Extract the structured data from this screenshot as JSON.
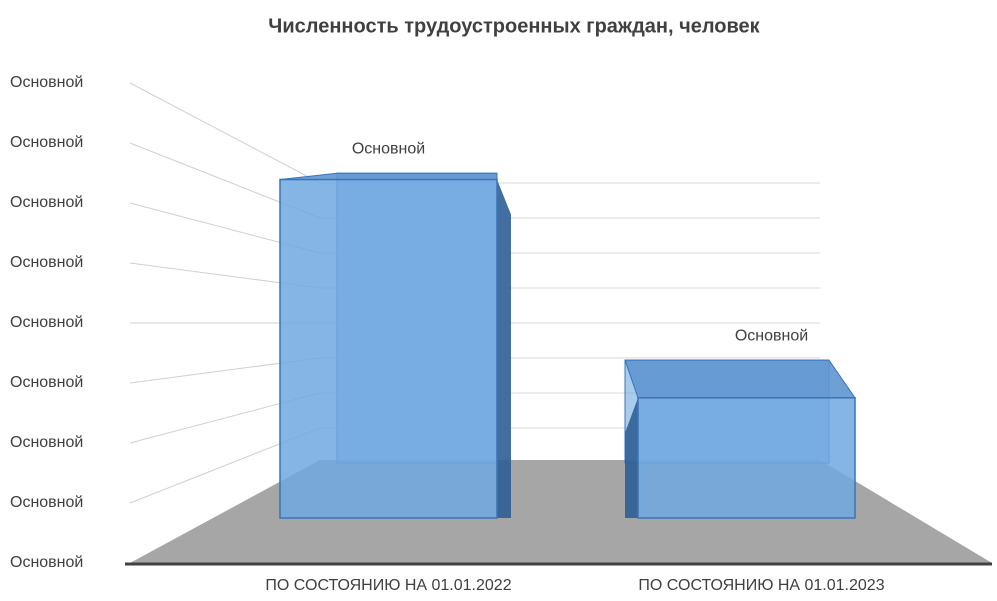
{
  "chart_data": {
    "type": "bar3d",
    "title": "Численность трудоустроенных граждан, человек",
    "categories": [
      "ПО СОСТОЯНИЮ НА 01.01.2022",
      "ПО СОСТОЯНИЮ НА 01.01.2023"
    ],
    "values": [
      414,
      147
    ],
    "value_labels": [
      "Основной",
      "Основной"
    ],
    "color": "#6fa8e0",
    "ylim": [
      0,
      400
    ],
    "yticks": [
      {
        "value": 0,
        "label": "Основной"
      },
      {
        "value": 50,
        "label": "Основной"
      },
      {
        "value": 100,
        "label": "Основной"
      },
      {
        "value": 150,
        "label": "Основной"
      },
      {
        "value": 200,
        "label": "Основной"
      },
      {
        "value": 250,
        "label": "Основной"
      },
      {
        "value": 300,
        "label": "Основной"
      },
      {
        "value": 350,
        "label": "Основной"
      },
      {
        "value": 400,
        "label": "Основной"
      }
    ],
    "grid": true
  }
}
